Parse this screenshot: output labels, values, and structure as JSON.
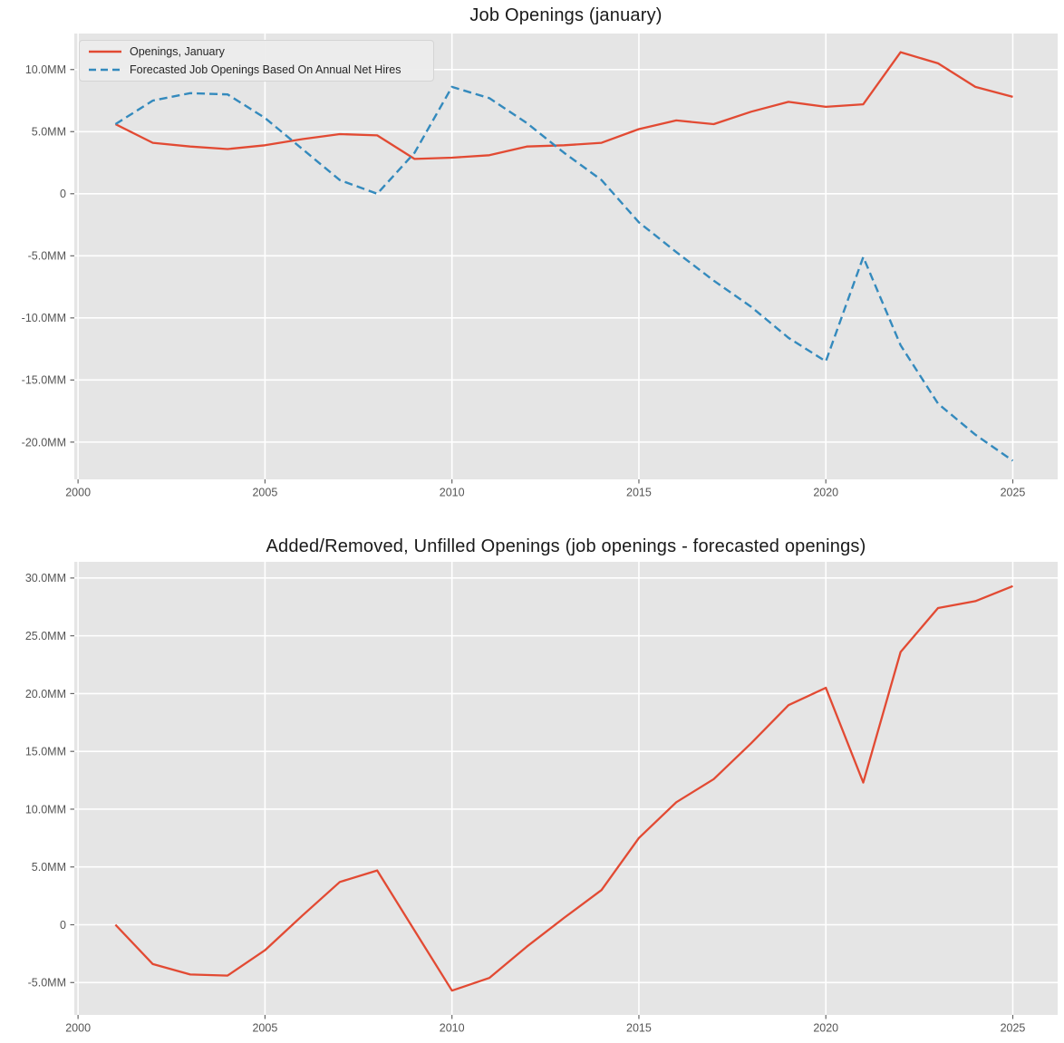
{
  "colors": {
    "figure_background": "#FFFFFF",
    "plot_background": "#E5E5E5",
    "grid": "#FFFFFF",
    "tick_mark": "#666666",
    "tick_label": "#555555",
    "title_text": "#1A1A1A",
    "series_red": "#E24A33",
    "series_blue": "#348ABD"
  },
  "chart_data": [
    {
      "type": "line",
      "title": "Job Openings (january)",
      "xlabel": "",
      "ylabel": "",
      "grid": true,
      "legend_position": "upper left",
      "xlim": [
        1999.9,
        2026.2
      ],
      "ylim": [
        -23.0,
        12.9
      ],
      "x": [
        2001,
        2002,
        2003,
        2004,
        2005,
        2006,
        2007,
        2008,
        2009,
        2010,
        2011,
        2012,
        2013,
        2014,
        2015,
        2016,
        2017,
        2018,
        2019,
        2020,
        2021,
        2022,
        2023,
        2024,
        2025
      ],
      "series": [
        {
          "name": "Openings, January",
          "color": "#E24A33",
          "style": "solid",
          "values": [
            5.6,
            4.1,
            3.8,
            3.6,
            3.9,
            4.4,
            4.8,
            4.7,
            2.8,
            2.9,
            3.1,
            3.8,
            3.9,
            4.1,
            5.2,
            5.9,
            5.6,
            6.6,
            7.4,
            7.0,
            7.2,
            11.4,
            10.5,
            8.6,
            7.8
          ]
        },
        {
          "name": "Forecasted Job Openings Based On Annual Net Hires",
          "color": "#348ABD",
          "style": "dashed",
          "values": [
            5.6,
            7.5,
            8.1,
            8.0,
            6.1,
            3.6,
            1.1,
            0.0,
            3.3,
            8.6,
            7.7,
            5.7,
            3.3,
            1.1,
            -2.3,
            -4.7,
            -7.0,
            -9.1,
            -11.6,
            -13.5,
            -5.1,
            -12.2,
            -16.9,
            -19.4,
            -21.5
          ]
        }
      ],
      "xticks": {
        "values": [
          2000,
          2005,
          2010,
          2015,
          2020,
          2025
        ],
        "labels": [
          "2000",
          "2005",
          "2010",
          "2015",
          "2020",
          "2025"
        ]
      },
      "yticks": {
        "values": [
          10,
          5,
          0,
          -5,
          -10,
          -15,
          -20
        ],
        "labels": [
          "10.0MM",
          "5.0MM",
          "0",
          "-5.0MM",
          "-10.0MM",
          "-15.0MM",
          "-20.0MM"
        ]
      }
    },
    {
      "type": "line",
      "title": "Added/Removed, Unfilled Openings (job openings - forecasted openings)",
      "xlabel": "",
      "ylabel": "",
      "grid": true,
      "legend_position": "none",
      "xlim": [
        1999.9,
        2026.2
      ],
      "ylim": [
        -7.8,
        31.4
      ],
      "x": [
        2001,
        2002,
        2003,
        2004,
        2005,
        2006,
        2007,
        2008,
        2009,
        2010,
        2011,
        2012,
        2013,
        2014,
        2015,
        2016,
        2017,
        2018,
        2019,
        2020,
        2021,
        2022,
        2023,
        2024,
        2025
      ],
      "series": [
        {
          "name": "Unfilled Openings (job openings - forecasted openings)",
          "color": "#E24A33",
          "style": "solid",
          "values": [
            0.0,
            -3.4,
            -4.3,
            -4.4,
            -2.2,
            0.8,
            3.7,
            4.7,
            -0.5,
            -5.7,
            -4.6,
            -1.9,
            0.6,
            3.0,
            7.5,
            10.6,
            12.6,
            15.7,
            19.0,
            20.5,
            12.3,
            23.6,
            27.4,
            28.0,
            29.3
          ]
        }
      ],
      "xticks": {
        "values": [
          2000,
          2005,
          2010,
          2015,
          2020,
          2025
        ],
        "labels": [
          "2000",
          "2005",
          "2010",
          "2015",
          "2020",
          "2025"
        ]
      },
      "yticks": {
        "values": [
          30,
          25,
          20,
          15,
          10,
          5,
          0,
          -5
        ],
        "labels": [
          "30.0MM",
          "25.0MM",
          "20.0MM",
          "15.0MM",
          "10.0MM",
          "5.0MM",
          "0",
          "-5.0MM"
        ]
      }
    }
  ]
}
